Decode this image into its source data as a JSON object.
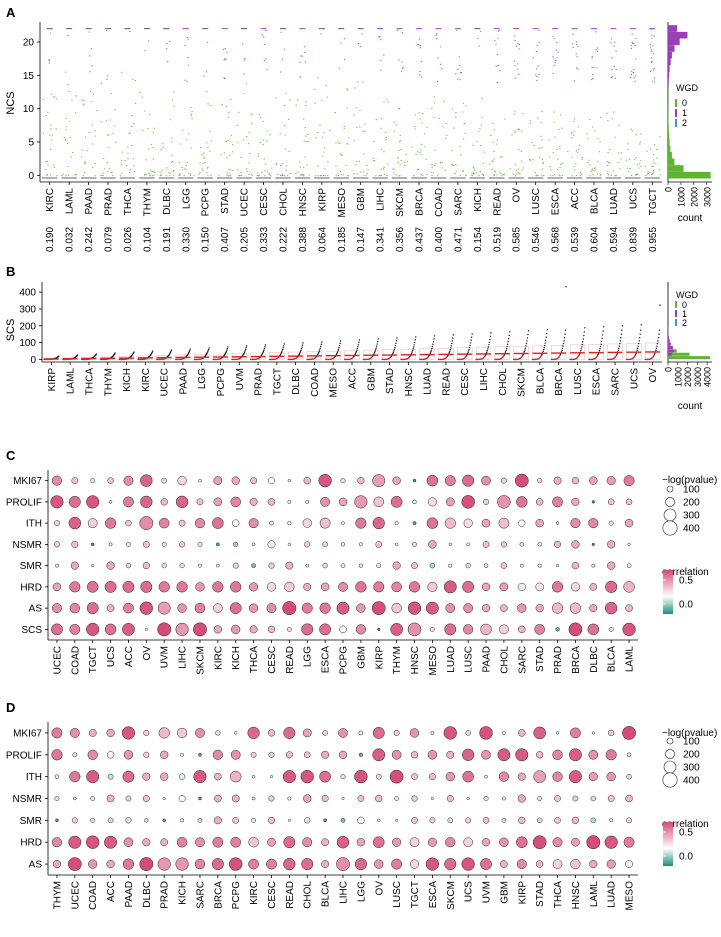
{
  "panels": {
    "A": {
      "letter": "A",
      "ylabel": "NCS",
      "yticks": [
        0,
        5,
        10,
        15,
        20
      ],
      "ylim": [
        -1,
        23
      ],
      "cancers": [
        "KIRC",
        "LAML",
        "PAAD",
        "PRAD",
        "THCA",
        "THYM",
        "DLBC",
        "LGG",
        "PCPG",
        "STAD",
        "UCEC",
        "CESC",
        "CHOL",
        "HNSC",
        "KIRP",
        "MESO",
        "GBM",
        "LIHC",
        "SKCM",
        "BRCA",
        "COAD",
        "SARC",
        "KICH",
        "READ",
        "OV",
        "LUSC",
        "ESCA",
        "ACC",
        "BLCA",
        "LUAD",
        "UCS",
        "TGCT"
      ],
      "values": [
        "0.190",
        "0.032",
        "0.242",
        "0.079",
        "0.026",
        "0.104",
        "0.191",
        "0.330",
        "0.150",
        "0.407",
        "0.205",
        "0.333",
        "0.222",
        "0.388",
        "0.064",
        "0.185",
        "0.147",
        "0.341",
        "0.356",
        "0.437",
        "0.400",
        "0.471",
        "0.154",
        "0.519",
        "0.585",
        "0.546",
        "0.568",
        "0.539",
        "0.604",
        "0.594",
        "0.839",
        "0.955"
      ],
      "hist_xlabel": "count",
      "hist_xticks": [
        "0",
        "1000",
        "2000",
        "3000"
      ],
      "legend_title": "WGD",
      "legend_items": [
        "0",
        "1",
        "2"
      ]
    },
    "B": {
      "letter": "B",
      "ylabel": "SCS",
      "yticks": [
        0,
        100,
        200,
        300,
        400
      ],
      "ylim": [
        -15,
        460
      ],
      "cancers": [
        "KIRP",
        "LAML",
        "THCA",
        "THYM",
        "KICH",
        "KIRC",
        "UCEC",
        "PAAD",
        "LGG",
        "PCPG",
        "UVM",
        "PRAD",
        "TGCT",
        "DLBC",
        "COAD",
        "MESO",
        "ACC",
        "GBM",
        "STAD",
        "HNSC",
        "LUAD",
        "READ",
        "CESC",
        "LIHC",
        "CHOL",
        "SKCM",
        "BLCA",
        "BRCA",
        "LUSC",
        "ESCA",
        "SARC",
        "UCS",
        "OV"
      ],
      "hist_xlabel": "count",
      "hist_xticks": [
        "0",
        "1000",
        "2000",
        "3000",
        "4000"
      ],
      "legend_title": "WGD",
      "legend_items": [
        "0",
        "1",
        "2"
      ]
    },
    "C": {
      "letter": "C",
      "rows": [
        "MKI67",
        "PROLIF",
        "ITH",
        "NSMR",
        "SMR",
        "HRD",
        "AS",
        "SCS"
      ],
      "cancers": [
        "UCEC",
        "COAD",
        "TGCT",
        "UCS",
        "ACC",
        "OV",
        "UVM",
        "LIHC",
        "SKCM",
        "KIRC",
        "KICH",
        "THCA",
        "CESC",
        "READ",
        "LGG",
        "ESCA",
        "PCPG",
        "GBM",
        "KIRP",
        "THYM",
        "HNSC",
        "MESO",
        "LUAD",
        "LUSC",
        "PAAD",
        "CHOL",
        "SARC",
        "STAD",
        "PRAD",
        "BRCA",
        "DLBC",
        "BLCA",
        "LAML"
      ],
      "size_legend_title": "−log(pvalue)",
      "size_legend_items": [
        "100",
        "200",
        "300",
        "400"
      ],
      "color_legend_title": "correlation",
      "color_legend_ticks": [
        "0.5",
        "0.0"
      ]
    },
    "D": {
      "letter": "D",
      "rows": [
        "MKI67",
        "PROLIF",
        "ITH",
        "NSMR",
        "SMR",
        "HRD",
        "AS"
      ],
      "cancers": [
        "THYM",
        "UCEC",
        "COAD",
        "ACC",
        "PAAD",
        "DLBC",
        "PRAD",
        "KICH",
        "SARC",
        "BRCA",
        "PCPG",
        "KIRC",
        "CESC",
        "READ",
        "CHOL",
        "BLCA",
        "LIHC",
        "LGG",
        "OV",
        "LUSC",
        "TGCT",
        "ESCA",
        "SKCM",
        "UCS",
        "UVM",
        "GBM",
        "KIRP",
        "STAD",
        "THCA",
        "HNSC",
        "LAML",
        "LUAD",
        "MESO"
      ],
      "size_legend_title": "−log(pvalue)",
      "size_legend_items": [
        "100",
        "200",
        "300",
        "400"
      ],
      "color_legend_title": "correlation",
      "color_legend_ticks": [
        "0.5",
        "0.0"
      ]
    }
  },
  "colors": {
    "wgd0": "#5fb533",
    "wgd1": "#9a3fb8",
    "wgd2": "#4a8fd6",
    "corr_high": "#d44a78",
    "corr_mid": "#ffffff",
    "corr_low": "#1a8f7a",
    "scs_red": "#e02020"
  }
}
